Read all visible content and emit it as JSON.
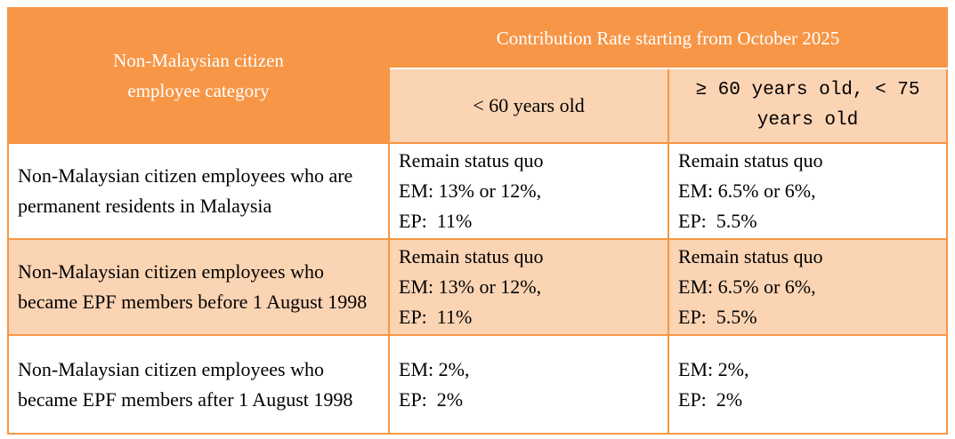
{
  "table": {
    "header": {
      "category": "Non-Malaysian citizen employee category",
      "group": "Contribution Rate starting from October 2025",
      "columns": [
        "< 60 years old",
        "≥ 60 years old, < 75 years old"
      ]
    },
    "rows": [
      {
        "category": "Non-Malaysian citizen employees who are permanent residents in Malaysia",
        "rates": [
          [
            "Remain status quo",
            "EM: 13% or 12%,",
            "EP:  11%"
          ],
          [
            "Remain status quo",
            "EM: 6.5% or 6%,",
            "EP:  5.5%"
          ]
        ]
      },
      {
        "category": "Non-Malaysian citizen employees who became EPF members before 1 August 1998",
        "rates": [
          [
            "Remain status quo",
            "EM: 13% or 12%,",
            "EP:  11%"
          ],
          [
            "Remain status quo",
            "EM: 6.5% or 6%,",
            "EP:  5.5%"
          ]
        ]
      },
      {
        "category": "Non-Malaysian citizen employees who became EPF members after 1 August 1998",
        "rates": [
          [
            "EM: 2%,",
            "EP:  2%"
          ],
          [
            "EM: 2%,",
            "EP:  2%"
          ]
        ]
      }
    ]
  }
}
